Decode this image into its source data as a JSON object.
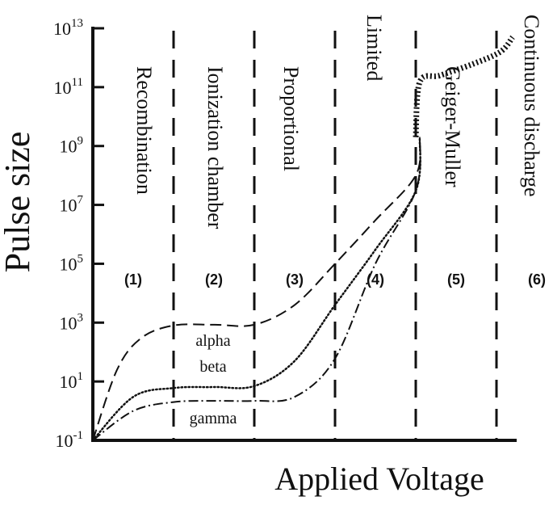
{
  "chart_data": {
    "type": "line",
    "title": "",
    "xlabel": "Applied Voltage",
    "ylabel": "Pulse size",
    "y_scale": "log",
    "ylim": [
      0.1,
      10000000000000
    ],
    "y_ticks": [
      {
        "value": 0.1,
        "base": "10",
        "exp": "-1"
      },
      {
        "value": 10,
        "base": "10",
        "exp": "1"
      },
      {
        "value": 1000,
        "base": "10",
        "exp": "3"
      },
      {
        "value": 100000,
        "base": "10",
        "exp": "5"
      },
      {
        "value": 10000000,
        "base": "10",
        "exp": "7"
      },
      {
        "value": 1000000000,
        "base": "10",
        "exp": "9"
      },
      {
        "value": 100000000000,
        "base": "10",
        "exp": "11"
      },
      {
        "value": 10000000000000,
        "base": "10",
        "exp": "13"
      }
    ],
    "x_ticks": [],
    "xlim": [
      0,
      5.25
    ],
    "region_boundaries": [
      1,
      2,
      3,
      4,
      5
    ],
    "regions": [
      {
        "number": "(1)",
        "name": "Recombination"
      },
      {
        "number": "(2)",
        "name": "Ionization chamber"
      },
      {
        "number": "(3)",
        "name": "Proportional"
      },
      {
        "number": "(4)",
        "name": "Limited"
      },
      {
        "number": "(5)",
        "name": "Geiger-Muller"
      },
      {
        "number": "(6)",
        "name": "Continuous discharge"
      }
    ],
    "series": [
      {
        "name": "alpha",
        "style": "dashed",
        "points": [
          [
            0,
            0.1
          ],
          [
            0.3,
            25
          ],
          [
            0.6,
            300
          ],
          [
            1,
            800
          ],
          [
            1.5,
            850
          ],
          [
            2,
            850
          ],
          [
            2.5,
            4000
          ],
          [
            3,
            100000
          ],
          [
            3.5,
            3000000
          ],
          [
            4,
            100000000
          ],
          [
            4.05,
            2000000000
          ]
        ]
      },
      {
        "name": "beta",
        "style": "dotted",
        "points": [
          [
            0,
            0.1
          ],
          [
            0.5,
            3
          ],
          [
            1,
            6
          ],
          [
            1.5,
            6.5
          ],
          [
            2,
            7
          ],
          [
            2.5,
            50
          ],
          [
            3,
            4000
          ],
          [
            3.5,
            300000
          ],
          [
            4,
            30000000
          ],
          [
            4.05,
            2000000000
          ]
        ]
      },
      {
        "name": "gamma",
        "style": "dashdot",
        "points": [
          [
            0,
            0.1
          ],
          [
            0.5,
            1
          ],
          [
            1,
            2
          ],
          [
            1.5,
            2.2
          ],
          [
            2,
            2.2
          ],
          [
            2.5,
            3
          ],
          [
            3,
            60
          ],
          [
            3.5,
            100000
          ],
          [
            4,
            30000000
          ],
          [
            4.05,
            2000000000
          ]
        ]
      },
      {
        "name": "",
        "style": "thick-dotted",
        "points": [
          [
            4,
            2000000000
          ],
          [
            4.05,
            150000000000
          ],
          [
            4.3,
            250000000000
          ],
          [
            4.7,
            600000000000
          ],
          [
            5.05,
            1600000000000
          ],
          [
            5.2,
            5000000000000
          ]
        ]
      }
    ],
    "colors": {
      "ink": "#111111",
      "background": "#ffffff"
    }
  }
}
